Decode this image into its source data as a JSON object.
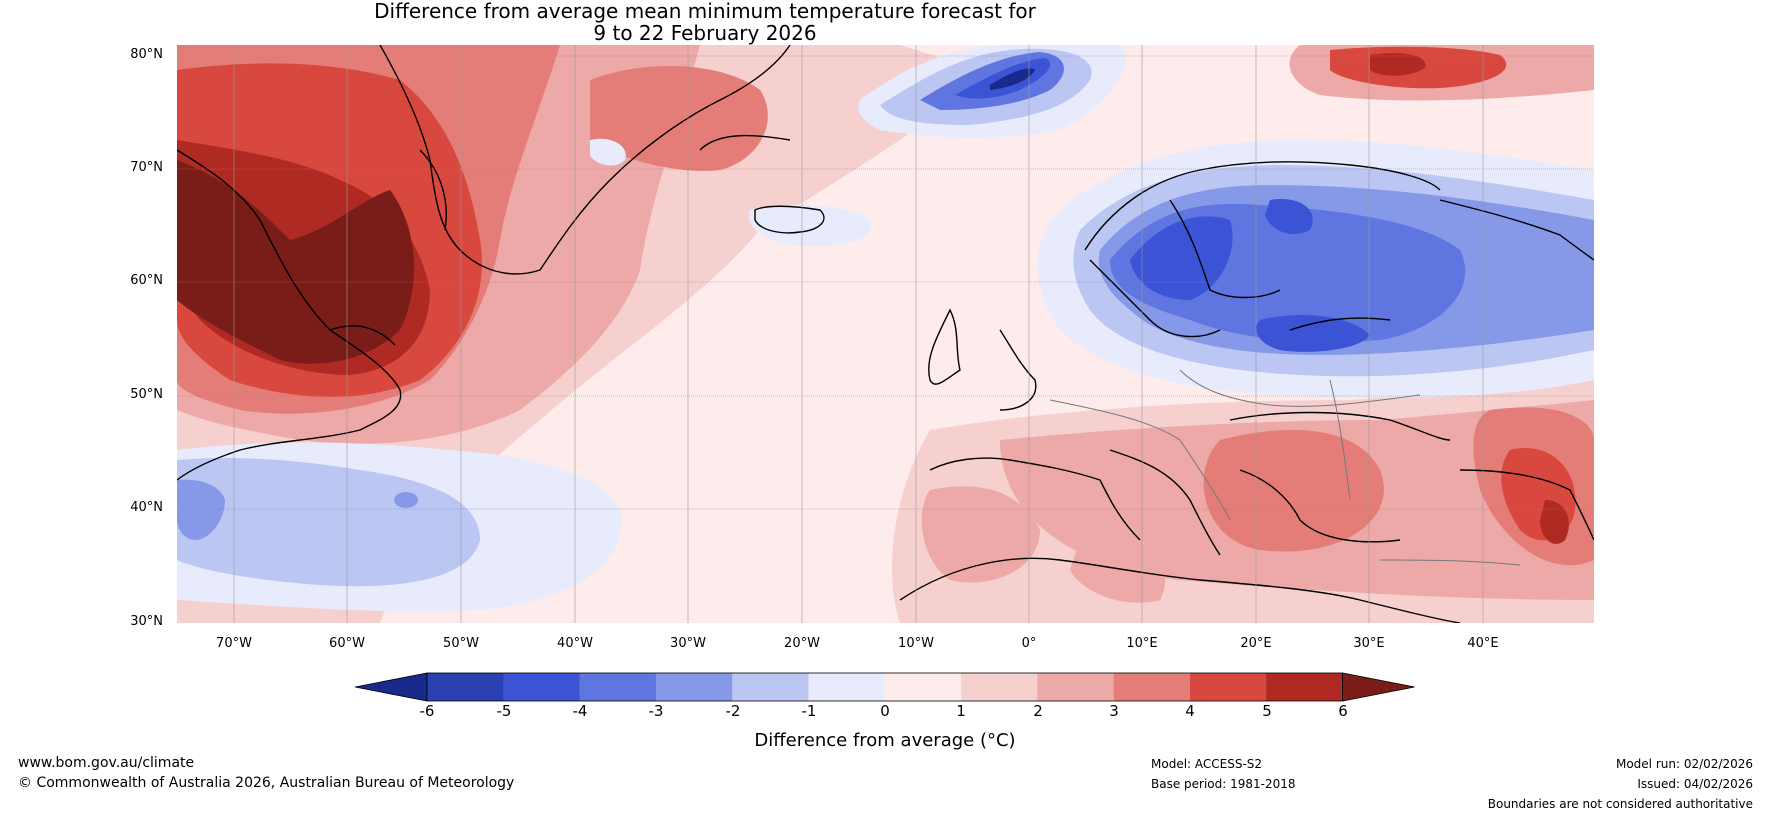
{
  "title": {
    "line1": "Difference from average mean minimum temperature forecast for",
    "line2": "9 to 22 February 2026"
  },
  "axes": {
    "lat_labels": [
      "80°N",
      "70°N",
      "60°N",
      "50°N",
      "40°N",
      "30°N"
    ],
    "lon_labels": [
      "70°W",
      "60°W",
      "50°W",
      "40°W",
      "30°W",
      "20°W",
      "10°W",
      "0°",
      "10°E",
      "20°E",
      "30°E",
      "40°E"
    ]
  },
  "colorbar": {
    "ticks": [
      "-6",
      "-5",
      "-4",
      "-3",
      "-2",
      "-1",
      "0",
      "1",
      "2",
      "3",
      "4",
      "5",
      "6"
    ],
    "colors": [
      "#1a2a8c",
      "#2a3fb0",
      "#3b54d6",
      "#5f75e0",
      "#8698e8",
      "#bcc6f2",
      "#e8ebfb",
      "#fdeceb",
      "#f5d0cf",
      "#eca9a7",
      "#e47d77",
      "#d8483e",
      "#b02a24",
      "#7a1c17"
    ],
    "label": "Difference from average (°C)"
  },
  "footer": {
    "website": "www.bom.gov.au/climate",
    "copyright": "© Commonwealth of Australia 2026, Australian Bureau of Meteorology",
    "model": "Model: ACCESS-S2",
    "base_period": "Base period: 1981-2018",
    "model_run": "Model run: 02/02/2026",
    "issued": "Issued: 04/02/2026",
    "disclaimer": "Boundaries are not considered authoritative"
  }
}
